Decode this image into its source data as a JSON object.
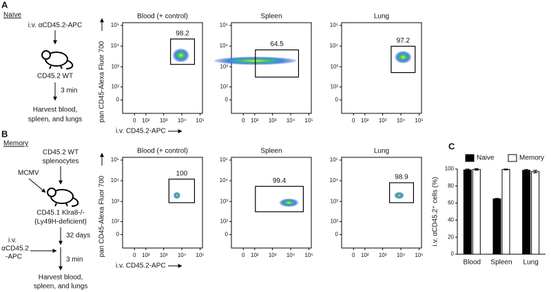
{
  "panel_labels": [
    "A",
    "B",
    "C"
  ],
  "naive": {
    "heading": "Naïve",
    "injection": "i.v. αCD45.2-APC",
    "mouse": "CD45.2 WT",
    "time": "3 min",
    "harvest": [
      "Harvest blood,",
      "spleen, and lungs"
    ]
  },
  "memory": {
    "heading": "Memory",
    "donor": [
      "CD45.2 WT",
      "splenocytes"
    ],
    "infection": "MCMV",
    "recipient": [
      "CD45.1 Klra8-/-",
      "(Ly49H-deficient)"
    ],
    "time1": "32 days",
    "injection": [
      "i.v.",
      "αCD45.2",
      "-APC"
    ],
    "time2": "3 min",
    "harvest": [
      "Harvest blood,",
      "spleen, and lungs"
    ]
  },
  "flow": {
    "y_label": "pan CD45-Alexa Fluor 700",
    "x_label": "i.v. CD45.2-APC",
    "ticks": [
      0,
      {
        "value": 100,
        "label": "10²"
      },
      {
        "value": 1000,
        "label": "10³"
      },
      {
        "value": 10000,
        "label": "10⁴"
      },
      {
        "value": 100000,
        "label": "10⁵"
      }
    ],
    "rows": [
      {
        "plots": [
          {
            "title": "Blood (+ control)",
            "gate": 98.2
          },
          {
            "title": "Spleen",
            "gate": 64.5
          },
          {
            "title": "Lung",
            "gate": 97.2
          }
        ]
      },
      {
        "plots": [
          {
            "title": "Blood (+ control)",
            "gate": 100
          },
          {
            "title": "Spleen",
            "gate": 99.4
          },
          {
            "title": "Lung",
            "gate": 98.9
          }
        ]
      }
    ]
  },
  "chart_data": {
    "type": "bar",
    "y_label": "i.v. αCD45.2⁺ cells (%)",
    "categories": [
      "Blood",
      "Spleen",
      "Lung"
    ],
    "series": [
      {
        "name": "Naive",
        "color": "#000000",
        "values": [
          99,
          65,
          98.5
        ],
        "errors": [
          1,
          0.5,
          1
        ]
      },
      {
        "name": "Memory",
        "color": "#ffffff",
        "values": [
          99.5,
          99.5,
          97
        ],
        "errors": [
          1,
          0.5,
          1.5
        ]
      }
    ],
    "ylim": [
      0,
      100
    ],
    "yticks": [
      0,
      20,
      40,
      60,
      80,
      100
    ],
    "legend": "top"
  }
}
